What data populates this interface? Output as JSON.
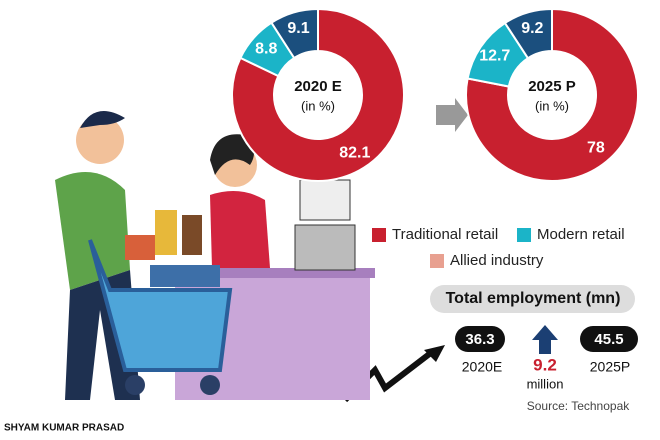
{
  "chart_data": [
    {
      "type": "donut",
      "title": "2020 E",
      "subtitle": "(in %)",
      "categories": [
        "Traditional retail",
        "Modern retail",
        "Allied industry"
      ],
      "values": [
        82.1,
        8.8,
        9.1
      ],
      "colors": [
        "#c8202f",
        "#1bb4c8",
        "#1b4f7e"
      ],
      "legend_colors": [
        "#c8202f",
        "#1bb4c8",
        "#e8a090"
      ]
    },
    {
      "type": "donut",
      "title": "2025 P",
      "subtitle": "(in %)",
      "categories": [
        "Traditional retail",
        "Modern retail",
        "Allied industry"
      ],
      "values": [
        78,
        12.7,
        9.2
      ],
      "colors": [
        "#c8202f",
        "#1bb4c8",
        "#1b4f7e"
      ]
    }
  ],
  "employment": {
    "title": "Total employment (mn)",
    "items": [
      {
        "label": "2020E",
        "value": 36.3
      },
      {
        "label": "2025P",
        "value": 45.5
      }
    ],
    "increase": {
      "value": 9.2,
      "unit": "million"
    }
  },
  "source": "Source: Technopak",
  "credit": "SHYAM KUMAR PRASAD"
}
